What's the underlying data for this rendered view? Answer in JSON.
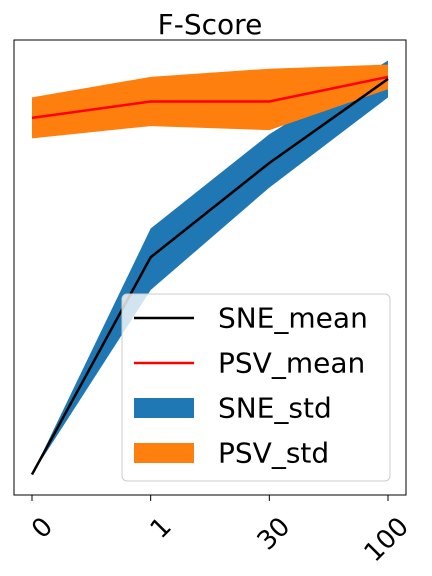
{
  "chart_data": {
    "type": "line",
    "title": "F-Score",
    "categories": [
      "0",
      "1",
      "30",
      "100"
    ],
    "series": [
      {
        "name": "SNE_mean",
        "values": [
          0.0,
          0.53,
          0.76,
          0.965
        ],
        "color": "#000000",
        "kind": "line"
      },
      {
        "name": "PSV_mean",
        "values": [
          0.87,
          0.91,
          0.91,
          0.97
        ],
        "color": "#ff0000",
        "kind": "line"
      },
      {
        "name": "SNE_std",
        "lower": [
          0.0,
          0.45,
          0.7,
          0.92
        ],
        "upper": [
          0.0,
          0.6,
          0.83,
          1.01
        ],
        "color": "#1f77b4",
        "kind": "band"
      },
      {
        "name": "PSV_std",
        "lower": [
          0.82,
          0.85,
          0.84,
          0.94
        ],
        "upper": [
          0.92,
          0.97,
          0.99,
          1.0
        ],
        "color": "#ff7f0e",
        "kind": "band"
      }
    ],
    "xlabel": "",
    "ylabel": "",
    "ylim": [
      -0.05,
      1.06
    ],
    "legend": {
      "placement": "lower right",
      "entries": [
        "SNE_mean",
        "PSV_mean",
        "SNE_std",
        "PSV_std"
      ]
    },
    "grid": false,
    "y_ticks_visible": false
  }
}
